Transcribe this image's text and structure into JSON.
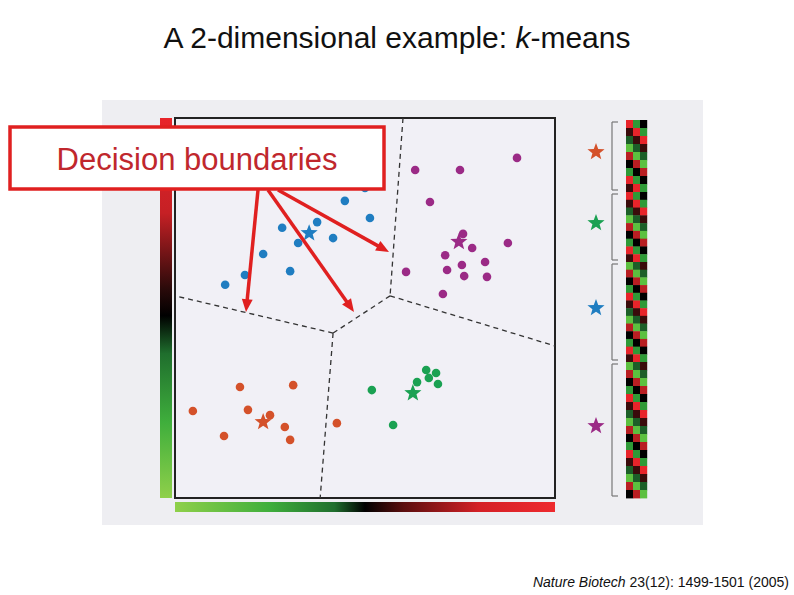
{
  "chart_data": {
    "type": "scatter",
    "title": [
      {
        "text": "A 2-dimensional example: ",
        "italic": false
      },
      {
        "text": "k",
        "italic": true
      },
      {
        "text": "-means",
        "italic": false
      }
    ],
    "annotation": "Decision boundaries",
    "source": [
      {
        "text": "Nature Biotech",
        "italic": true
      },
      {
        "text": " 23(12): 1499-1501 (2005)",
        "italic": false
      }
    ],
    "xlim": [
      0,
      100
    ],
    "ylim": [
      0,
      100
    ],
    "tick_labels": false,
    "marker": "circle",
    "series": [
      {
        "color": "#d4512a",
        "x": [
          17.1,
          31.1,
          4.7,
          19.2,
          25.0,
          12.9,
          28.9,
          30.3,
          42.6
        ],
        "values": [
          29.2,
          29.7,
          22.9,
          23.2,
          21.8,
          16.3,
          18.7,
          15.3,
          19.7
        ],
        "centroid": {
          "x": 23.2,
          "y": 20.0
        }
      },
      {
        "color": "#1aa152",
        "x": [
          51.8,
          57.4,
          66.1,
          68.7,
          63.7,
          66.8,
          69.2
        ],
        "values": [
          28.4,
          19.2,
          33.7,
          32.9,
          30.5,
          31.6,
          30.0
        ],
        "centroid": {
          "x": 62.6,
          "y": 27.6
        }
      },
      {
        "color": "#1f7dc1",
        "x": [
          50.0,
          44.7,
          37.4,
          32.4,
          28.2,
          41.6,
          51.3,
          23.2,
          30.3,
          18.4,
          13.2
        ],
        "values": [
          81.6,
          78.2,
          72.6,
          67.1,
          71.1,
          68.4,
          73.7,
          64.2,
          59.7,
          58.7,
          56.1
        ],
        "centroid": {
          "x": 35.3,
          "y": 69.7
        }
      },
      {
        "color": "#9b2a86",
        "x": [
          63.2,
          75.0,
          90.0,
          67.1,
          75.8,
          78.2,
          87.6,
          71.1,
          71.6,
          75.5,
          81.6,
          82.1,
          76.1,
          60.8,
          70.5
        ],
        "values": [
          86.3,
          86.3,
          89.5,
          77.9,
          69.5,
          65.8,
          67.1,
          63.9,
          60.0,
          61.3,
          62.1,
          58.2,
          58.4,
          59.5,
          53.7
        ],
        "centroid": {
          "x": 74.7,
          "y": 67.4
        }
      }
    ],
    "boundaries": [
      {
        "x": [
          60.0,
          56.6
        ],
        "y": [
          100,
          53.2
        ]
      },
      {
        "x": [
          56.6,
          100
        ],
        "y": [
          53.2,
          40.0
        ]
      },
      {
        "x": [
          56.6,
          41.6
        ],
        "y": [
          53.2,
          43.4
        ]
      },
      {
        "x": [
          41.6,
          0
        ],
        "y": [
          43.4,
          53.2
        ]
      },
      {
        "x": [
          41.6,
          38.2
        ],
        "y": [
          43.4,
          0
        ]
      }
    ]
  }
}
